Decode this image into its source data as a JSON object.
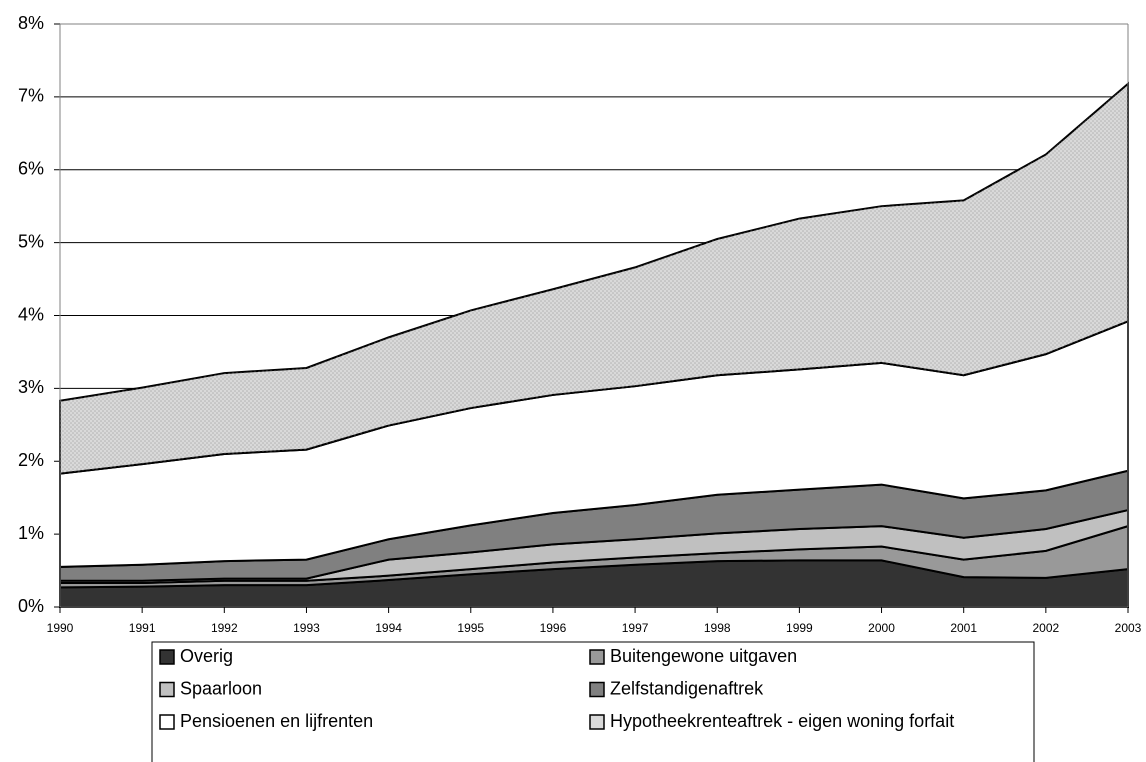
{
  "chart_data": {
    "type": "stacked-area",
    "categories": [
      "1990",
      "1991",
      "1992",
      "1993",
      "1994",
      "1995",
      "1996",
      "1997",
      "1998",
      "1999",
      "2000",
      "2001",
      "2002",
      "2003"
    ],
    "ylim": [
      0,
      8
    ],
    "yticks": [
      {
        "value": 0,
        "label": "0%"
      },
      {
        "value": 1,
        "label": "1%"
      },
      {
        "value": 2,
        "label": "2%"
      },
      {
        "value": 3,
        "label": "3%"
      },
      {
        "value": 4,
        "label": "4%"
      },
      {
        "value": 5,
        "label": "5%"
      },
      {
        "value": 6,
        "label": "6%"
      },
      {
        "value": 7,
        "label": "7%"
      },
      {
        "value": 8,
        "label": "8%"
      }
    ],
    "grid": true,
    "legend": "bottom",
    "series": [
      {
        "name": "Overig",
        "color": "#333333",
        "values": [
          0.27,
          0.28,
          0.3,
          0.3,
          0.37,
          0.45,
          0.52,
          0.58,
          0.63,
          0.64,
          0.64,
          0.41,
          0.4,
          0.52
        ]
      },
      {
        "name": "Buitengewone uitgaven",
        "color": "#999999",
        "values": [
          0.06,
          0.05,
          0.06,
          0.06,
          0.06,
          0.07,
          0.09,
          0.1,
          0.11,
          0.15,
          0.19,
          0.24,
          0.37,
          0.59
        ]
      },
      {
        "name": "Spaarloon",
        "color": "#c0c0c0",
        "values": [
          0.03,
          0.03,
          0.03,
          0.03,
          0.22,
          0.23,
          0.25,
          0.25,
          0.27,
          0.28,
          0.28,
          0.3,
          0.3,
          0.22
        ]
      },
      {
        "name": "Zelfstandigenaftrek",
        "color": "#808080",
        "values": [
          0.19,
          0.22,
          0.24,
          0.26,
          0.28,
          0.37,
          0.43,
          0.47,
          0.53,
          0.54,
          0.57,
          0.54,
          0.53,
          0.54
        ]
      },
      {
        "name": "Pensioenen en lijfrenten",
        "color": "#ffffff",
        "values": [
          1.28,
          1.38,
          1.47,
          1.51,
          1.56,
          1.61,
          1.62,
          1.63,
          1.64,
          1.65,
          1.67,
          1.69,
          1.87,
          2.05
        ]
      },
      {
        "name": "Hypotheekrenteaftrek - eigen woning forfait",
        "color": "#d9d9d9",
        "values": [
          1.0,
          1.05,
          1.11,
          1.12,
          1.21,
          1.34,
          1.45,
          1.63,
          1.87,
          2.07,
          2.15,
          2.4,
          2.74,
          3.26
        ]
      }
    ]
  }
}
